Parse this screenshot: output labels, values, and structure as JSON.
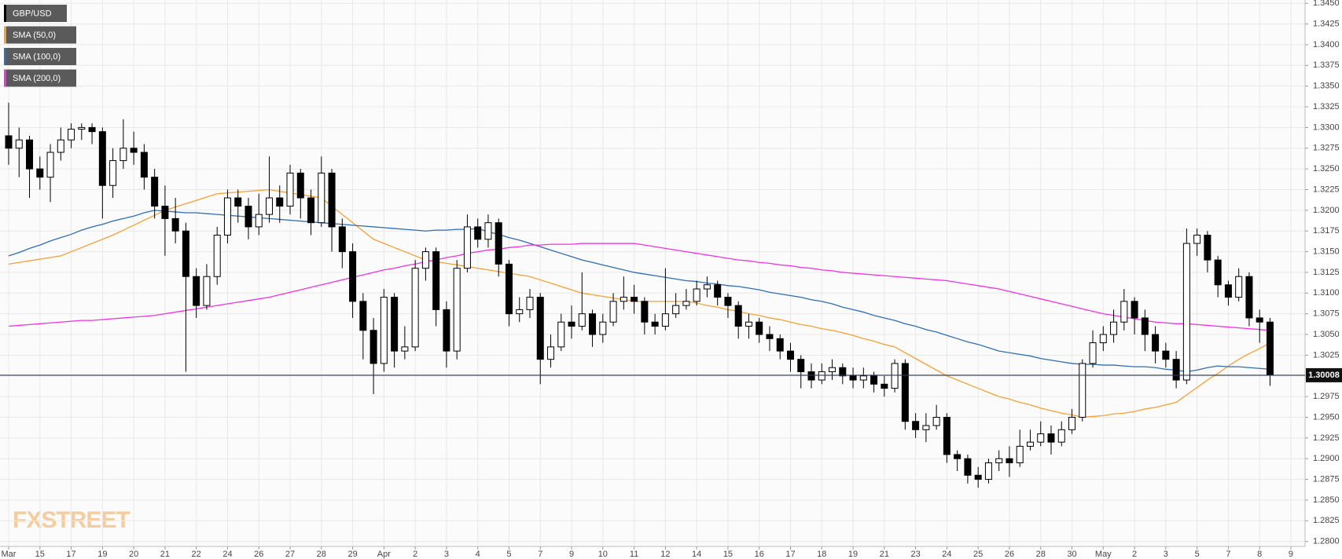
{
  "chart_data": {
    "type": "candlestick",
    "name": "GBP/USD",
    "up_color": "#ffffff",
    "down_color": "#000000",
    "categories": [
      "Mar",
      null,
      null,
      "15",
      null,
      null,
      "17",
      null,
      null,
      "19",
      null,
      null,
      "20",
      null,
      null,
      "21",
      null,
      null,
      "22",
      null,
      null,
      "24",
      null,
      null,
      "26",
      null,
      null,
      "27",
      null,
      null,
      "28",
      null,
      null,
      "29",
      null,
      null,
      "Apr",
      null,
      null,
      "2",
      null,
      null,
      "3",
      null,
      null,
      "4",
      null,
      null,
      "5",
      null,
      null,
      "7",
      null,
      null,
      "9",
      null,
      null,
      "10",
      null,
      null,
      "11",
      null,
      null,
      "12",
      null,
      null,
      "14",
      null,
      null,
      "15",
      null,
      null,
      "16",
      null,
      null,
      "17",
      null,
      null,
      "18",
      null,
      null,
      "19",
      null,
      null,
      "21",
      null,
      null,
      "23",
      null,
      null,
      "24",
      null,
      null,
      "25",
      null,
      null,
      "26",
      null,
      null,
      "28",
      null,
      null,
      "30",
      null,
      null,
      "May",
      null,
      null,
      "2",
      null,
      null,
      "3",
      null,
      null,
      "5",
      null,
      null,
      "7",
      null,
      null,
      "8",
      null,
      null,
      "9"
    ],
    "open": [
      1.329,
      1.3275,
      1.3285,
      1.325,
      1.324,
      1.327,
      1.3285,
      1.3298,
      1.33,
      1.3295,
      1.323,
      1.326,
      1.3275,
      1.327,
      1.324,
      1.3205,
      1.319,
      1.3175,
      1.312,
      1.3085,
      1.312,
      1.317,
      1.3215,
      1.3205,
      1.318,
      1.3195,
      1.3215,
      1.3205,
      1.3245,
      1.3215,
      1.3185,
      1.3245,
      1.318,
      1.315,
      1.309,
      1.3055,
      1.3015,
      1.3095,
      1.303,
      1.3035,
      1.313,
      1.315,
      1.308,
      1.303,
      1.313,
      1.318,
      1.3165,
      1.3185,
      1.3135,
      1.3075,
      1.308,
      1.3095,
      1.302,
      1.3035,
      1.3065,
      1.306,
      1.3075,
      1.305,
      1.3065,
      1.309,
      1.3095,
      1.309,
      1.3065,
      1.306,
      1.3075,
      1.3085,
      1.309,
      1.3105,
      1.311,
      1.3095,
      1.3085,
      1.306,
      1.3065,
      1.305,
      1.3045,
      1.303,
      1.302,
      1.3005,
      1.2995,
      1.3005,
      1.301,
      1.3,
      1.2995,
      1.3,
      1.299,
      1.2985,
      1.3015,
      1.2945,
      1.2935,
      1.294,
      1.295,
      1.2905,
      1.29,
      1.288,
      1.2875,
      1.2895,
      1.29,
      1.2895,
      1.2915,
      1.292,
      1.293,
      1.292,
      1.2935,
      1.295,
      1.3015,
      1.304,
      1.305,
      1.3065,
      1.309,
      1.307,
      1.305,
      1.303,
      1.302,
      1.2995,
      1.316,
      1.317,
      1.314,
      1.311,
      1.3095,
      1.312,
      1.307,
      1.3065,
      null,
      null
    ],
    "high": [
      1.333,
      1.33,
      1.329,
      1.3265,
      1.328,
      1.33,
      1.3305,
      1.3305,
      1.3305,
      1.33,
      1.3275,
      1.331,
      1.3295,
      1.328,
      1.325,
      1.323,
      1.3215,
      1.3185,
      1.313,
      1.3135,
      1.318,
      1.3225,
      1.3225,
      1.3215,
      1.322,
      1.3265,
      1.323,
      1.3255,
      1.325,
      1.3225,
      1.3265,
      1.325,
      1.319,
      1.316,
      1.31,
      1.307,
      1.3105,
      1.31,
      1.306,
      1.314,
      1.3155,
      1.3155,
      1.309,
      1.314,
      1.3195,
      1.319,
      1.3195,
      1.319,
      1.314,
      1.3095,
      1.3105,
      1.31,
      1.305,
      1.3075,
      1.3085,
      1.3125,
      1.308,
      1.3075,
      1.31,
      1.312,
      1.311,
      1.3095,
      1.3075,
      1.313,
      1.31,
      1.3105,
      1.3115,
      1.312,
      1.3115,
      1.31,
      1.309,
      1.3075,
      1.307,
      1.306,
      1.305,
      1.304,
      1.3025,
      1.3015,
      1.3015,
      1.302,
      1.3015,
      1.301,
      1.301,
      1.3005,
      1.3,
      1.302,
      1.302,
      1.2955,
      1.2955,
      1.2965,
      1.2955,
      1.291,
      1.2905,
      1.289,
      1.29,
      1.291,
      1.2915,
      1.2935,
      1.2935,
      1.2945,
      1.294,
      1.2945,
      1.296,
      1.302,
      1.3055,
      1.306,
      1.308,
      1.3105,
      1.3095,
      1.308,
      1.306,
      1.304,
      1.303,
      1.3178,
      1.3178,
      1.3175,
      1.3145,
      1.3115,
      1.313,
      1.3125,
      1.308,
      1.307,
      null,
      null
    ],
    "low": [
      1.3255,
      1.324,
      1.3215,
      1.3225,
      1.321,
      1.326,
      1.3275,
      1.3285,
      1.328,
      1.319,
      1.3215,
      1.325,
      1.3255,
      1.3225,
      1.319,
      1.3145,
      1.316,
      1.3005,
      1.307,
      1.308,
      1.311,
      1.316,
      1.3185,
      1.3165,
      1.317,
      1.3185,
      1.3185,
      1.3195,
      1.319,
      1.317,
      1.318,
      1.315,
      1.313,
      1.307,
      1.302,
      1.2978,
      1.3005,
      1.301,
      1.302,
      1.303,
      1.3115,
      1.306,
      1.301,
      1.302,
      1.3125,
      1.3155,
      1.3155,
      1.312,
      1.306,
      1.3065,
      1.307,
      1.299,
      1.301,
      1.303,
      1.3045,
      1.3055,
      1.3035,
      1.304,
      1.306,
      1.308,
      1.3075,
      1.305,
      1.305,
      1.3055,
      1.307,
      1.308,
      1.3085,
      1.3095,
      1.3085,
      1.307,
      1.3045,
      1.3045,
      1.304,
      1.303,
      1.302,
      1.3005,
      1.2985,
      1.2985,
      1.299,
      1.2995,
      1.299,
      1.2985,
      1.2985,
      1.298,
      1.2975,
      1.298,
      1.2935,
      1.2925,
      1.292,
      1.2935,
      1.2895,
      1.2885,
      1.287,
      1.2865,
      1.287,
      1.2885,
      1.2878,
      1.289,
      1.291,
      1.2915,
      1.2905,
      1.2915,
      1.293,
      1.2945,
      1.301,
      1.303,
      1.304,
      1.3055,
      1.305,
      1.303,
      1.3015,
      1.301,
      1.2985,
      1.299,
      1.3145,
      1.3125,
      1.3095,
      1.3085,
      1.309,
      1.306,
      1.304,
      1.2988,
      null,
      null
    ],
    "close": [
      1.3275,
      1.3285,
      1.325,
      1.324,
      1.327,
      1.3285,
      1.3298,
      1.33,
      1.3295,
      1.323,
      1.326,
      1.3275,
      1.327,
      1.324,
      1.3205,
      1.319,
      1.3175,
      1.312,
      1.3085,
      1.312,
      1.317,
      1.3215,
      1.3205,
      1.318,
      1.3195,
      1.3215,
      1.3205,
      1.3245,
      1.3215,
      1.3185,
      1.3245,
      1.318,
      1.315,
      1.309,
      1.3055,
      1.3015,
      1.3095,
      1.303,
      1.3035,
      1.313,
      1.315,
      1.308,
      1.303,
      1.313,
      1.318,
      1.3165,
      1.3185,
      1.3135,
      1.3075,
      1.308,
      1.3095,
      1.302,
      1.3035,
      1.3065,
      1.306,
      1.3075,
      1.305,
      1.3065,
      1.309,
      1.3095,
      1.309,
      1.3065,
      1.306,
      1.3075,
      1.3085,
      1.309,
      1.3105,
      1.311,
      1.3095,
      1.3085,
      1.306,
      1.3065,
      1.305,
      1.3045,
      1.303,
      1.302,
      1.3005,
      1.2995,
      1.3005,
      1.301,
      1.3,
      1.2995,
      1.3,
      1.299,
      1.2985,
      1.3015,
      1.2945,
      1.2935,
      1.294,
      1.295,
      1.2905,
      1.29,
      1.288,
      1.2875,
      1.2895,
      1.29,
      1.2895,
      1.2915,
      1.292,
      1.293,
      1.292,
      1.2935,
      1.295,
      1.3015,
      1.304,
      1.305,
      1.3065,
      1.309,
      1.307,
      1.305,
      1.303,
      1.302,
      1.2995,
      1.316,
      1.317,
      1.314,
      1.311,
      1.3095,
      1.312,
      1.307,
      1.3065,
      1.30008,
      null,
      null
    ],
    "series": [
      {
        "name": "SMA (50,0)",
        "color": "#f5a033",
        "values": [
          1.3135,
          1.3137,
          1.3139,
          1.3141,
          1.3143,
          1.3145,
          1.315,
          1.3155,
          1.316,
          1.3165,
          1.317,
          1.3176,
          1.3182,
          1.3188,
          1.3194,
          1.32,
          1.3204,
          1.3208,
          1.3212,
          1.3216,
          1.322,
          1.3221,
          1.3222,
          1.3223,
          1.3224,
          1.3225,
          1.3223,
          1.3221,
          1.3219,
          1.3217,
          1.3215,
          1.3205,
          1.3195,
          1.3185,
          1.3175,
          1.3165,
          1.316,
          1.3155,
          1.315,
          1.3145,
          1.314,
          1.3138,
          1.3136,
          1.3134,
          1.3132,
          1.313,
          1.3128,
          1.3126,
          1.3124,
          1.3122,
          1.312,
          1.3116,
          1.3112,
          1.3108,
          1.3104,
          1.31,
          1.3098,
          1.3096,
          1.3094,
          1.3092,
          1.309,
          1.309,
          1.309,
          1.309,
          1.309,
          1.309,
          1.3088,
          1.3085,
          1.3083,
          1.308,
          1.3078,
          1.3075,
          1.3073,
          1.307,
          1.3068,
          1.3065,
          1.3062,
          1.306,
          1.3057,
          1.3055,
          1.3052,
          1.3049,
          1.3045,
          1.3042,
          1.3038,
          1.3035,
          1.3028,
          1.3021,
          1.3014,
          1.3007,
          1.3,
          1.2995,
          1.299,
          1.2985,
          1.298,
          1.2975,
          1.2972,
          1.2968,
          1.2965,
          1.2961,
          1.2958,
          1.2955,
          1.2953,
          1.295,
          1.2951,
          1.2952,
          1.2954,
          1.2955,
          1.2957,
          1.296,
          1.2962,
          1.2965,
          1.2968,
          1.2977,
          1.2986,
          1.2995,
          1.3003,
          1.3012,
          1.302,
          1.3027,
          1.3033,
          1.304,
          null,
          null
        ]
      },
      {
        "name": "SMA (100,0)",
        "color": "#2f6db5",
        "values": [
          1.3145,
          1.3149,
          1.3154,
          1.3158,
          1.3163,
          1.3167,
          1.3171,
          1.3176,
          1.318,
          1.3183,
          1.3187,
          1.319,
          1.3193,
          1.3197,
          1.32,
          1.3199,
          1.3198,
          1.3197,
          1.3197,
          1.3196,
          1.3195,
          1.3194,
          1.3193,
          1.3192,
          1.3191,
          1.319,
          1.3189,
          1.3188,
          1.3187,
          1.3186,
          1.3185,
          1.3184,
          1.3183,
          1.3182,
          1.3181,
          1.318,
          1.3179,
          1.3178,
          1.3177,
          1.3176,
          1.3175,
          1.3176,
          1.3176,
          1.3177,
          1.3177,
          1.3178,
          1.3174,
          1.3171,
          1.3167,
          1.3164,
          1.316,
          1.3156,
          1.3152,
          1.3148,
          1.3144,
          1.314,
          1.3137,
          1.3134,
          1.3131,
          1.3128,
          1.3125,
          1.3123,
          1.3121,
          1.3119,
          1.3117,
          1.3115,
          1.3114,
          1.3112,
          1.3111,
          1.3109,
          1.3108,
          1.3106,
          1.3104,
          1.3101,
          1.3099,
          1.3097,
          1.3095,
          1.3092,
          1.309,
          1.3087,
          1.3083,
          1.308,
          1.3077,
          1.3073,
          1.307,
          1.3067,
          1.3063,
          1.306,
          1.3056,
          1.3053,
          1.3049,
          1.3045,
          1.3041,
          1.3038,
          1.3034,
          1.303,
          1.3028,
          1.3026,
          1.3024,
          1.3021,
          1.3019,
          1.3017,
          1.3015,
          1.3014,
          1.3014,
          1.3013,
          1.3013,
          1.3012,
          1.3011,
          1.3011,
          1.301,
          1.3008,
          1.3007,
          1.3005,
          1.3007,
          1.301,
          1.3012,
          1.3011,
          1.3011,
          1.301,
          1.3009,
          1.3008,
          null,
          null
        ]
      },
      {
        "name": "SMA (200,0)",
        "color": "#f032e6",
        "values": [
          1.306,
          1.3061,
          1.3062,
          1.3063,
          1.3064,
          1.3065,
          1.3066,
          1.3067,
          1.3067,
          1.3068,
          1.3069,
          1.307,
          1.3071,
          1.3072,
          1.3073,
          1.3075,
          1.3077,
          1.3079,
          1.3081,
          1.3083,
          1.3085,
          1.3087,
          1.3089,
          1.3091,
          1.3093,
          1.3095,
          1.3098,
          1.3101,
          1.3104,
          1.3107,
          1.311,
          1.3113,
          1.3116,
          1.3119,
          1.3122,
          1.3125,
          1.3128,
          1.313,
          1.3133,
          1.3135,
          1.3138,
          1.314,
          1.3143,
          1.3145,
          1.3148,
          1.315,
          1.3152,
          1.3153,
          1.3155,
          1.3156,
          1.3158,
          1.3158,
          1.3159,
          1.3159,
          1.3159,
          1.316,
          1.316,
          1.316,
          1.316,
          1.316,
          1.316,
          1.3158,
          1.3156,
          1.3154,
          1.3152,
          1.315,
          1.3148,
          1.3146,
          1.3144,
          1.3142,
          1.314,
          1.3139,
          1.3137,
          1.3136,
          1.3134,
          1.3133,
          1.3131,
          1.313,
          1.3128,
          1.3127,
          1.3125,
          1.3124,
          1.3123,
          1.3122,
          1.3121,
          1.312,
          1.3119,
          1.3118,
          1.3117,
          1.3116,
          1.3115,
          1.3113,
          1.3111,
          1.3109,
          1.3107,
          1.3105,
          1.3102,
          1.3099,
          1.3096,
          1.3093,
          1.309,
          1.3087,
          1.3084,
          1.3081,
          1.3078,
          1.3075,
          1.3073,
          1.3071,
          1.3069,
          1.3067,
          1.3065,
          1.3064,
          1.3063,
          1.3063,
          1.3062,
          1.3061,
          1.306,
          1.3059,
          1.3058,
          1.3057,
          1.3056,
          1.3055,
          null,
          null
        ]
      }
    ],
    "ylim": [
      1.2794,
      1.3454
    ],
    "yticks": [
      {
        "value": 1.28,
        "label": "1.2800"
      },
      {
        "value": 1.2825,
        "label": "1.2825"
      },
      {
        "value": 1.285,
        "label": "1.2850"
      },
      {
        "value": 1.2875,
        "label": "1.2875"
      },
      {
        "value": 1.29,
        "label": "1.2900"
      },
      {
        "value": 1.2925,
        "label": "1.2925"
      },
      {
        "value": 1.295,
        "label": "1.2950"
      },
      {
        "value": 1.2975,
        "label": "1.2975"
      },
      {
        "value": 1.3,
        "label": "1.3000"
      },
      {
        "value": 1.3025,
        "label": "1.3025"
      },
      {
        "value": 1.305,
        "label": "1.3050"
      },
      {
        "value": 1.3075,
        "label": "1.3075"
      },
      {
        "value": 1.31,
        "label": "1.3100"
      },
      {
        "value": 1.3125,
        "label": "1.3125"
      },
      {
        "value": 1.315,
        "label": "1.3150"
      },
      {
        "value": 1.3175,
        "label": "1.3175"
      },
      {
        "value": 1.32,
        "label": "1.3200"
      },
      {
        "value": 1.3225,
        "label": "1.3225"
      },
      {
        "value": 1.325,
        "label": "1.3250"
      },
      {
        "value": 1.3275,
        "label": "1.3275"
      },
      {
        "value": 1.33,
        "label": "1.3300"
      },
      {
        "value": 1.3325,
        "label": "1.3325"
      },
      {
        "value": 1.335,
        "label": "1.3350"
      },
      {
        "value": 1.3375,
        "label": "1.3375"
      },
      {
        "value": 1.34,
        "label": "1.3400"
      },
      {
        "value": 1.3425,
        "label": "1.3425"
      },
      {
        "value": 1.345,
        "label": "1.3450"
      }
    ],
    "grid": true,
    "last_price": 1.30008,
    "watermark": "FXSTREET"
  }
}
